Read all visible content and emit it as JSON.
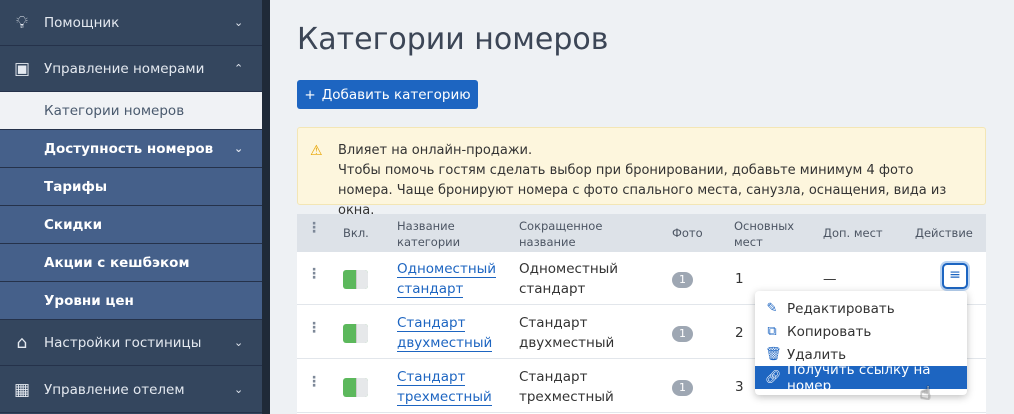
{
  "sidebar": {
    "items": [
      {
        "label": "Помощник",
        "icon": "lightbulb-icon"
      },
      {
        "label": "Управление номерами",
        "icon": "calendar-icon"
      },
      {
        "label": "Категории номеров"
      },
      {
        "label": "Доступность номеров"
      },
      {
        "label": "Тарифы"
      },
      {
        "label": "Скидки"
      },
      {
        "label": "Акции с кешбэком"
      },
      {
        "label": "Уровни цен"
      },
      {
        "label": "Настройки гостиницы",
        "icon": "home-icon"
      },
      {
        "label": "Управление отелем",
        "icon": "dashboard-icon"
      }
    ]
  },
  "page": {
    "title": "Категории номеров",
    "add_button": "Добавить категорию"
  },
  "alert": {
    "line1": "Влияет на онлайн-продажи.",
    "line2": "Чтобы помочь гостям сделать выбор при бронировании, добавьте минимум 4 фото номера. Чаще бронируют номера с фото спального места, санузла, оснащения, вида из окна."
  },
  "table": {
    "headers": {
      "enabled": "Вкл.",
      "name1": "Название",
      "name2": "категории",
      "short1": "Сокращенное",
      "short2": "название",
      "photo": "Фото",
      "main1": "Основных",
      "main2": "мест",
      "extra": "Доп. мест",
      "action": "Действие"
    },
    "rows": [
      {
        "name1": "Одноместный",
        "name2": "стандарт",
        "short1": "Одноместный",
        "short2": "стандарт",
        "photo": "1",
        "main": "1",
        "extra": "—",
        "enabled": true
      },
      {
        "name1": "Стандарт",
        "name2": "двухместный",
        "short1": "Стандарт",
        "short2": "двухместный",
        "photo": "1",
        "main": "2",
        "extra": "",
        "enabled": true
      },
      {
        "name1": "Стандарт",
        "name2": "трехместный",
        "short1": "Стандарт",
        "short2": "трехместный",
        "photo": "1",
        "main": "3",
        "extra": "",
        "enabled": true
      }
    ]
  },
  "menu": {
    "items": [
      "Редактировать",
      "Копировать",
      "Удалить",
      "Получить ссылку на номер"
    ]
  },
  "colors": {
    "accent": "#1d65c1",
    "sidebar": "#34465e",
    "submenu": "#45608a",
    "toggle_on": "#5cb85c"
  }
}
